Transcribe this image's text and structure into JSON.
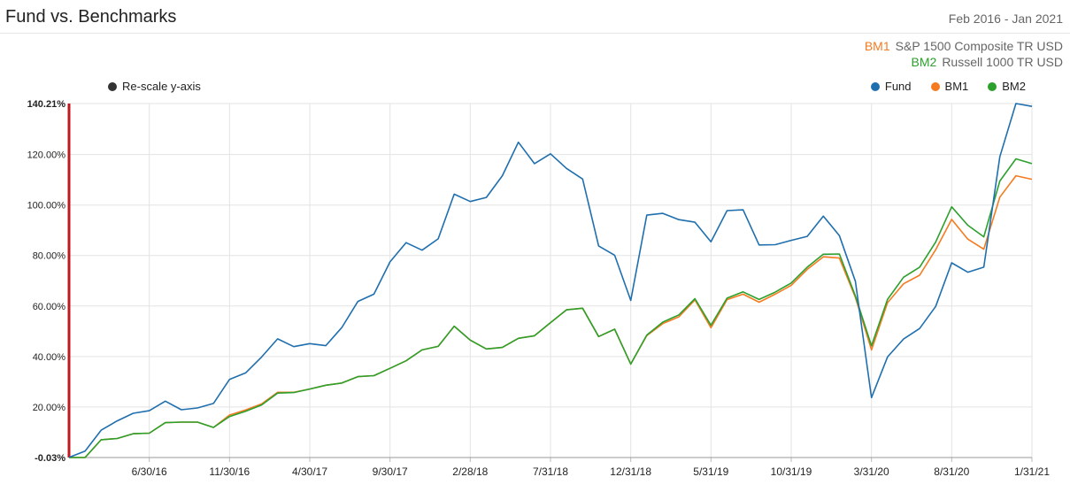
{
  "header": {
    "title": "Fund vs. Benchmarks",
    "period": "Feb 2016 - Jan 2021"
  },
  "benchmarks": [
    {
      "tag": "BM1",
      "name": "S&P 1500 Composite TR USD",
      "color": "#f47b20"
    },
    {
      "tag": "BM2",
      "name": "Russell 1000 TR USD",
      "color": "#2ca02c"
    }
  ],
  "controls": {
    "rescale_label": "Re-scale y-axis",
    "rescale_color": "#333333"
  },
  "chart_data": {
    "type": "line",
    "ylim": [
      -0.03,
      140.21
    ],
    "ytick_values": [
      -0.03,
      20,
      40,
      60,
      80,
      100,
      120,
      140.21
    ],
    "ytick_labels": [
      "-0.03%",
      "20.00%",
      "40.00%",
      "60.00%",
      "80.00%",
      "100.00%",
      "120.00%",
      "140.21%"
    ],
    "x_count": 61,
    "xticks": [
      {
        "index": 5,
        "label": "6/30/16"
      },
      {
        "index": 10,
        "label": "11/30/16"
      },
      {
        "index": 15,
        "label": "4/30/17"
      },
      {
        "index": 20,
        "label": "9/30/17"
      },
      {
        "index": 25,
        "label": "2/28/18"
      },
      {
        "index": 30,
        "label": "7/31/18"
      },
      {
        "index": 35,
        "label": "12/31/18"
      },
      {
        "index": 40,
        "label": "5/31/19"
      },
      {
        "index": 45,
        "label": "10/31/19"
      },
      {
        "index": 50,
        "label": "3/31/20"
      },
      {
        "index": 55,
        "label": "8/31/20"
      },
      {
        "index": 60,
        "label": "1/31/21"
      }
    ],
    "grid": true,
    "legend_placement": "top-right",
    "series": [
      {
        "name": "Fund",
        "color": "#1f6fae",
        "values": [
          0,
          2.5,
          10.8,
          14.5,
          17.5,
          18.5,
          22.3,
          18.9,
          19.6,
          21.4,
          30.9,
          33.5,
          39.8,
          47.0,
          43.9,
          45.1,
          44.3,
          51.5,
          61.8,
          64.7,
          77.5,
          85.1,
          82.1,
          86.6,
          104.3,
          101.4,
          103.0,
          111.6,
          124.9,
          116.4,
          120.3,
          114.5,
          110.3,
          83.8,
          80.1,
          62.2,
          96.0,
          96.7,
          94.2,
          93.2,
          85.4,
          97.8,
          98.1,
          84.2,
          84.3,
          86.0,
          87.6,
          95.6,
          87.9,
          69.8,
          23.7,
          39.8,
          46.9,
          51.1,
          59.8,
          77.1,
          73.4,
          75.4,
          119.1,
          140.21,
          139.1
        ]
      },
      {
        "name": "BM1",
        "color": "#f47b20",
        "values": [
          0,
          -0.03,
          7.0,
          7.5,
          9.4,
          9.6,
          13.8,
          14.0,
          14.0,
          11.9,
          16.8,
          18.8,
          21.2,
          25.8,
          25.8,
          27.1,
          28.6,
          29.5,
          32.0,
          32.4,
          35.3,
          38.3,
          42.6,
          44.0,
          52.0,
          46.5,
          43.0,
          43.6,
          47.2,
          48.2,
          53.4,
          58.5,
          59.1,
          47.9,
          50.8,
          37.0,
          48.3,
          53.0,
          55.7,
          62.4,
          51.4,
          62.5,
          64.7,
          61.5,
          64.7,
          68.2,
          74.5,
          79.5,
          79.0,
          63.4,
          42.6,
          61.3,
          68.8,
          72.2,
          82.3,
          94.3,
          86.5,
          82.5,
          103.1,
          111.6,
          110.2
        ]
      },
      {
        "name": "BM2",
        "color": "#2ca02c",
        "values": [
          0,
          -0.03,
          7.0,
          7.5,
          9.4,
          9.6,
          13.8,
          14.0,
          14.0,
          11.9,
          16.2,
          18.3,
          20.8,
          25.5,
          25.7,
          27.1,
          28.6,
          29.5,
          32.0,
          32.4,
          35.3,
          38.3,
          42.6,
          44.0,
          52.0,
          46.5,
          43.0,
          43.6,
          47.2,
          48.2,
          53.4,
          58.5,
          59.1,
          47.9,
          50.8,
          37.0,
          48.5,
          53.6,
          56.5,
          62.9,
          52.4,
          63.1,
          65.6,
          62.6,
          65.5,
          69.1,
          75.4,
          80.5,
          80.6,
          64.0,
          44.2,
          62.6,
          71.4,
          75.4,
          85.3,
          99.3,
          92.0,
          87.4,
          109.5,
          118.3,
          116.4
        ]
      }
    ]
  }
}
